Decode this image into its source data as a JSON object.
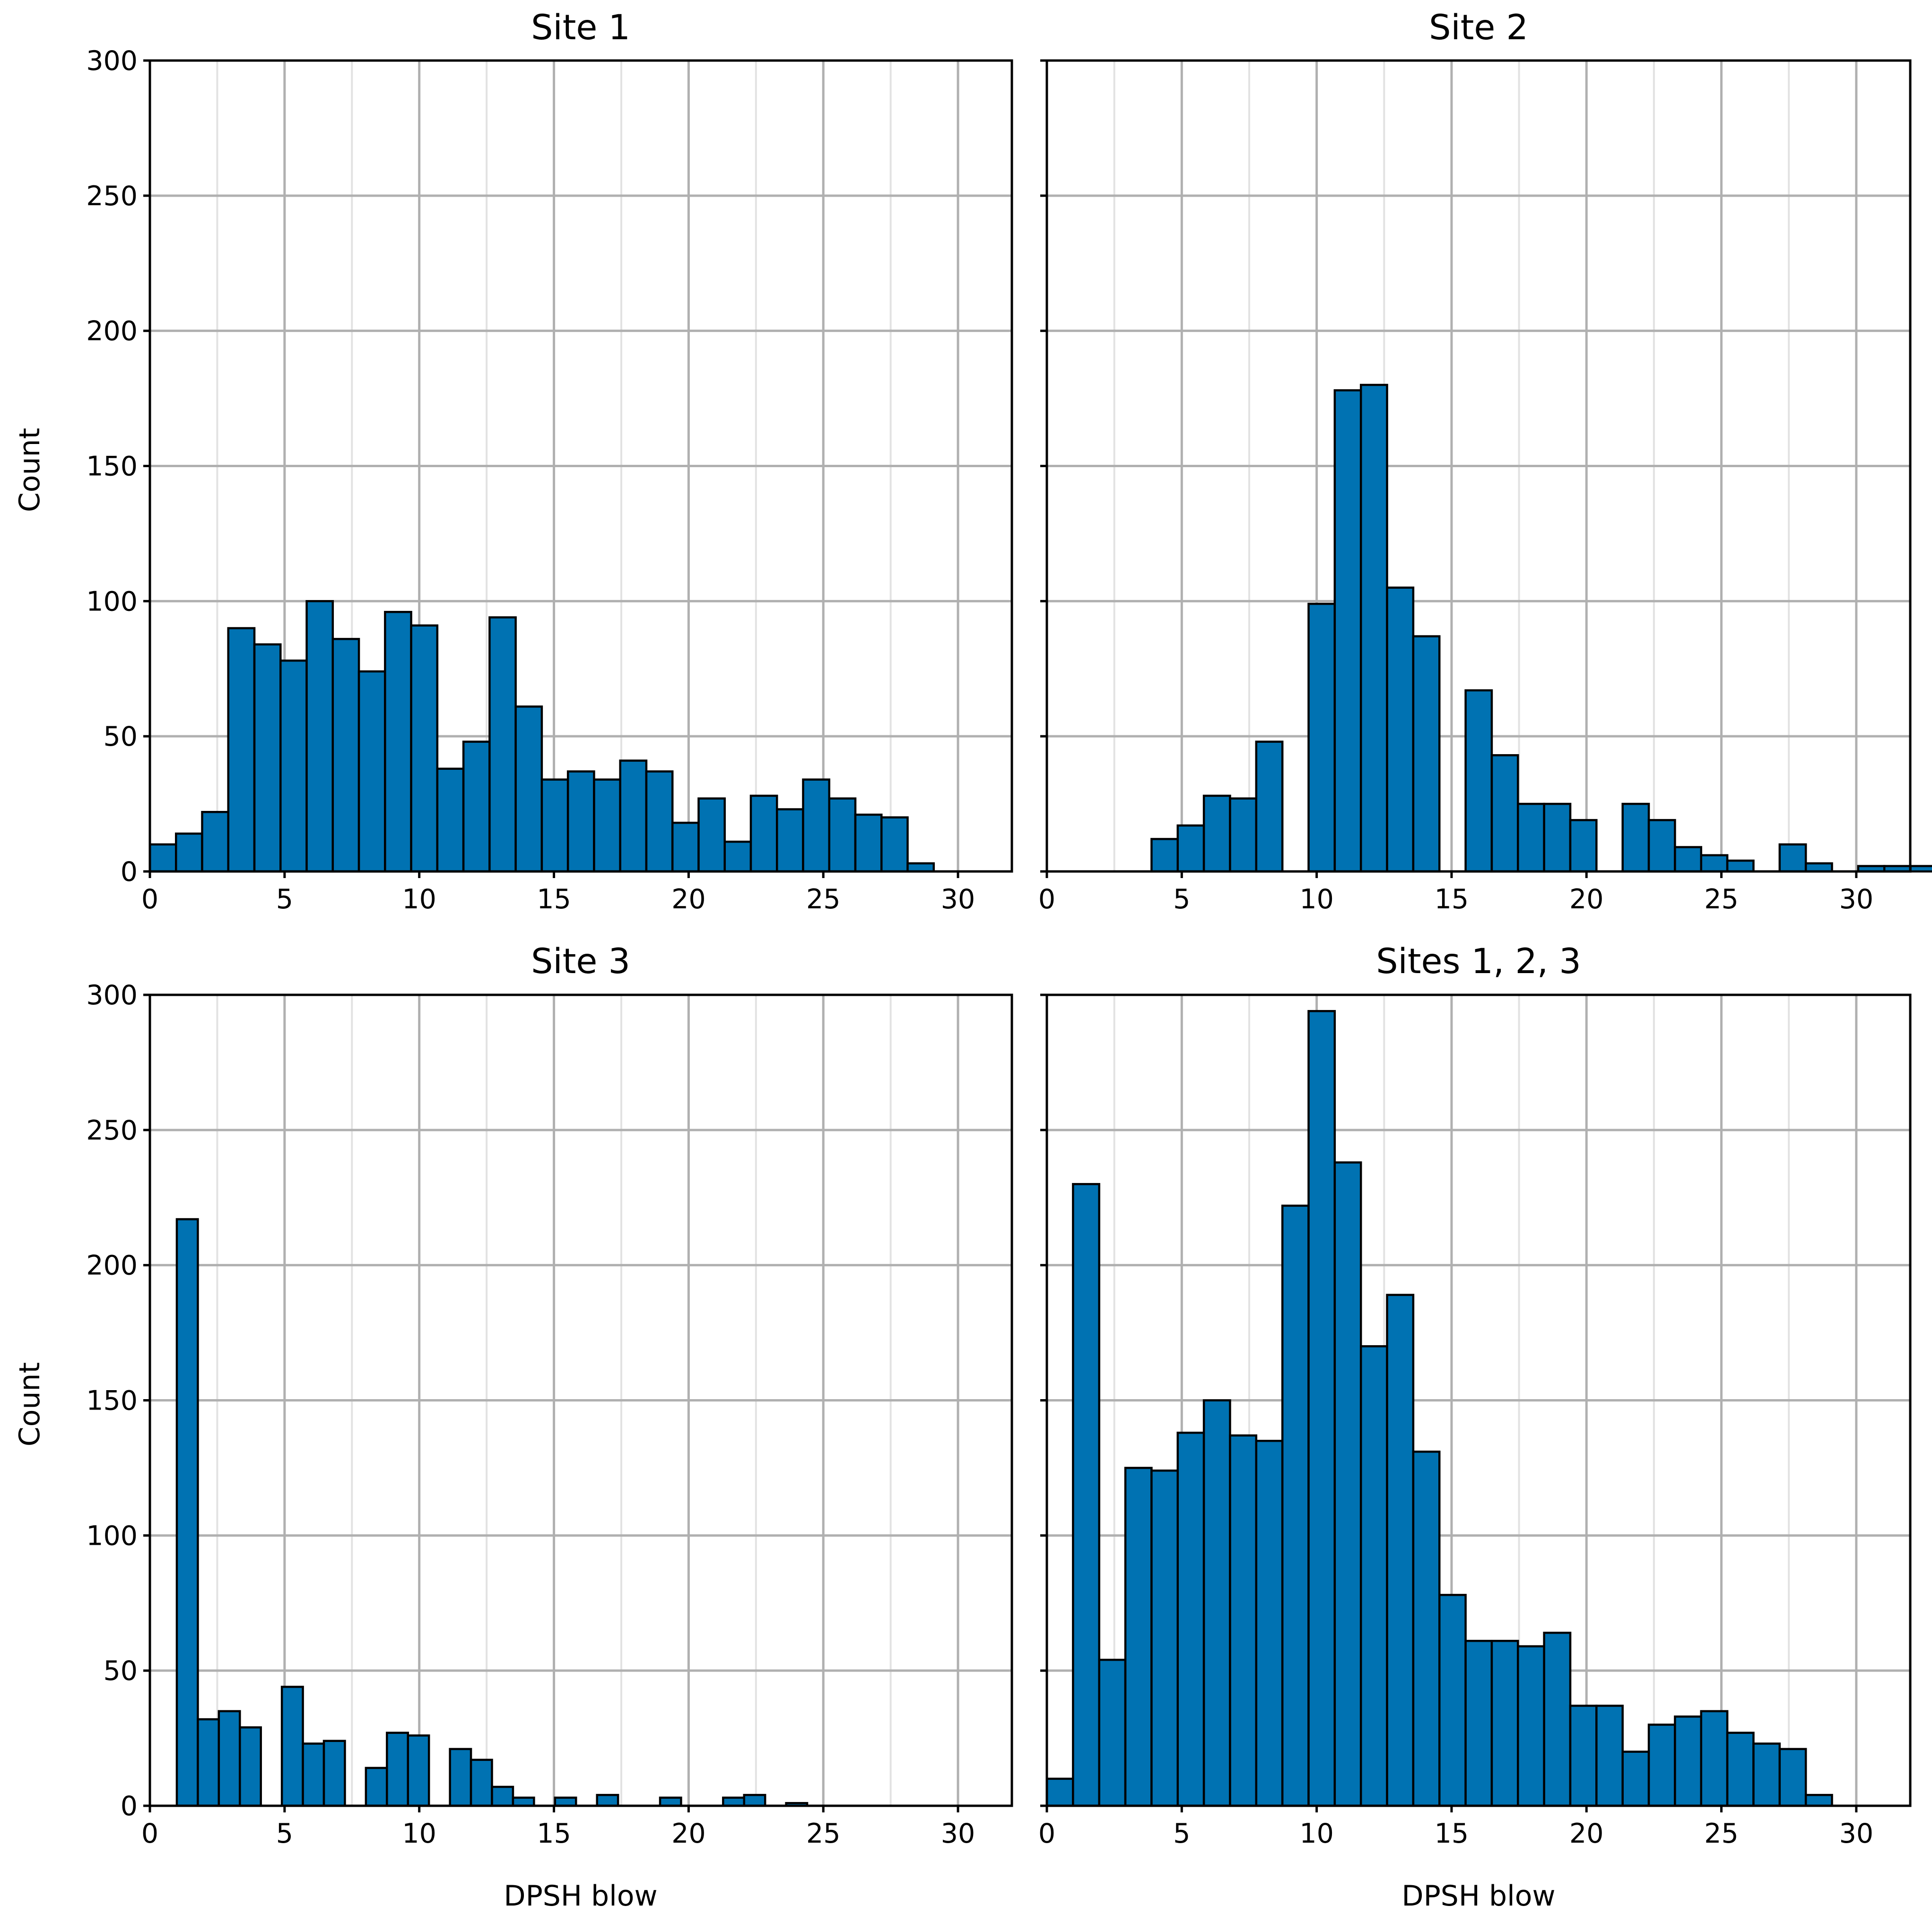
{
  "colors": {
    "bar_fill": "#0072B2",
    "bar_edge": "#000000",
    "grid": "#b0b0b0"
  },
  "chart_data": [
    {
      "type": "bar",
      "title": "Site 1",
      "xlabel": "",
      "ylabel": "Count",
      "xlim": [
        0,
        32
      ],
      "ylim": [
        0,
        300
      ],
      "xticks": [
        "0",
        "5",
        "10",
        "15",
        "20",
        "25",
        "30"
      ],
      "yticks": [
        "0",
        "50",
        "100",
        "150",
        "200",
        "250",
        "300"
      ],
      "bin_width": 0.97,
      "bin_start": 0,
      "values": [
        10,
        14,
        22,
        90,
        84,
        78,
        100,
        86,
        74,
        96,
        91,
        38,
        48,
        94,
        61,
        34,
        37,
        34,
        41,
        37,
        18,
        27,
        11,
        28,
        23,
        34,
        27,
        21,
        20,
        3,
        0,
        0
      ]
    },
    {
      "type": "bar",
      "title": "Site 2",
      "xlabel": "",
      "ylabel": "",
      "xlim": [
        0,
        32
      ],
      "ylim": [
        0,
        300
      ],
      "xticks": [
        "0",
        "5",
        "10",
        "15",
        "20",
        "25",
        "30"
      ],
      "yticks": [],
      "bin_width": 0.97,
      "bin_start": 0,
      "values": [
        0,
        0,
        0,
        0,
        12,
        17,
        28,
        27,
        48,
        0,
        99,
        178,
        180,
        105,
        87,
        0,
        67,
        43,
        25,
        25,
        19,
        0,
        25,
        19,
        9,
        6,
        4,
        0,
        10,
        3,
        0,
        2,
        2,
        2,
        0
      ]
    },
    {
      "type": "bar",
      "title": "Site 3",
      "xlabel": "DPSH blow",
      "ylabel": "Count",
      "xlim": [
        0,
        32
      ],
      "ylim": [
        0,
        300
      ],
      "xticks": [
        "0",
        "5",
        "10",
        "15",
        "20",
        "25",
        "30"
      ],
      "yticks": [
        "0",
        "50",
        "100",
        "150",
        "200",
        "250",
        "300"
      ],
      "bin_width": 0.78,
      "bin_start": 1,
      "values": [
        217,
        32,
        35,
        29,
        0,
        44,
        23,
        24,
        0,
        14,
        27,
        26,
        0,
        21,
        17,
        7,
        3,
        0,
        3,
        0,
        4,
        0,
        0,
        3,
        0,
        0,
        3,
        4,
        0,
        1
      ]
    },
    {
      "type": "bar",
      "title": "Sites 1, 2, 3",
      "xlabel": "DPSH blow",
      "ylabel": "",
      "xlim": [
        0,
        32
      ],
      "ylim": [
        0,
        300
      ],
      "xticks": [
        "0",
        "5",
        "10",
        "15",
        "20",
        "25",
        "30"
      ],
      "yticks": [],
      "bin_width": 0.97,
      "bin_start": 0,
      "values": [
        10,
        230,
        54,
        125,
        124,
        138,
        150,
        137,
        135,
        222,
        294,
        238,
        170,
        189,
        131,
        78,
        61,
        61,
        59,
        64,
        37,
        37,
        20,
        30,
        33,
        35,
        27,
        23,
        21,
        4
      ]
    }
  ]
}
